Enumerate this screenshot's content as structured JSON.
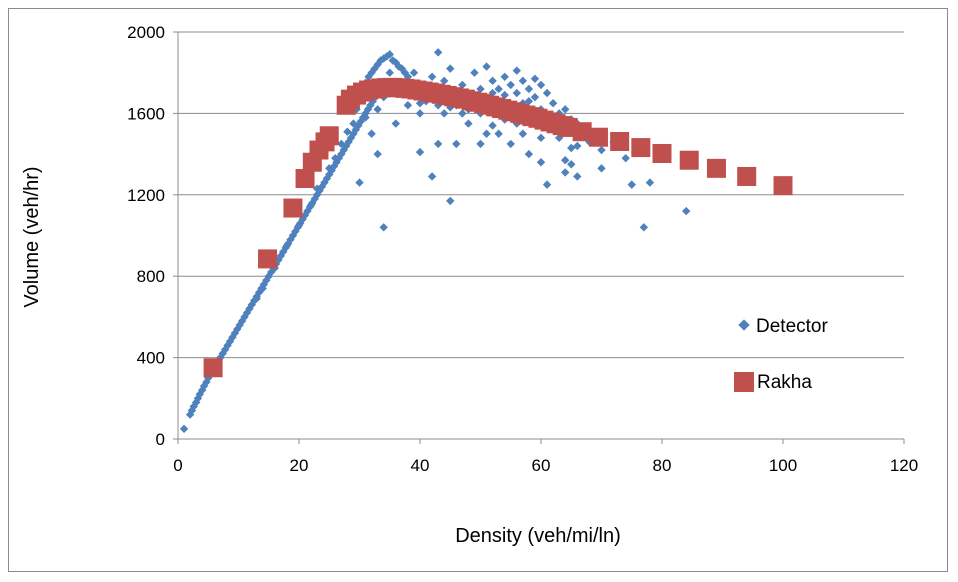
{
  "chart_data": {
    "type": "scatter",
    "xlabel": "Density (veh/mi/ln)",
    "ylabel": "Volume (veh/hr)",
    "xlim": [
      0,
      120
    ],
    "ylim": [
      0,
      2000
    ],
    "x_ticks": [
      "0",
      "20",
      "40",
      "60",
      "80",
      "100",
      "120"
    ],
    "y_ticks": [
      "0",
      "400",
      "800",
      "1200",
      "1600",
      "2000"
    ],
    "grid": "horizontal",
    "legend_position": "right",
    "series": [
      {
        "name": "Detector",
        "marker": "diamond",
        "color": "#4f81bd",
        "points": [
          [
            1,
            50
          ],
          [
            2,
            120
          ],
          [
            2.3,
            140
          ],
          [
            2.6,
            160
          ],
          [
            3,
            180
          ],
          [
            3.3,
            200
          ],
          [
            3.6,
            220
          ],
          [
            4,
            240
          ],
          [
            4.3,
            260
          ],
          [
            4.7,
            280
          ],
          [
            5,
            300
          ],
          [
            5.4,
            320
          ],
          [
            5.8,
            340
          ],
          [
            6.2,
            360
          ],
          [
            6.6,
            380
          ],
          [
            7,
            400
          ],
          [
            7.4,
            420
          ],
          [
            7.8,
            440
          ],
          [
            8.2,
            460
          ],
          [
            8.6,
            480
          ],
          [
            9,
            500
          ],
          [
            9.4,
            520
          ],
          [
            9.8,
            540
          ],
          [
            10.2,
            560
          ],
          [
            10.6,
            580
          ],
          [
            11,
            600
          ],
          [
            11.4,
            620
          ],
          [
            11.8,
            640
          ],
          [
            12.2,
            660
          ],
          [
            12.6,
            680
          ],
          [
            13,
            700
          ],
          [
            13.4,
            720
          ],
          [
            13.8,
            740
          ],
          [
            14.2,
            760
          ],
          [
            14.6,
            780
          ],
          [
            15,
            800
          ],
          [
            15.4,
            820
          ],
          [
            15.8,
            840
          ],
          [
            16.2,
            860
          ],
          [
            16.6,
            880
          ],
          [
            17,
            900
          ],
          [
            17.4,
            920
          ],
          [
            17.8,
            940
          ],
          [
            18.2,
            960
          ],
          [
            18.6,
            980
          ],
          [
            19,
            1000
          ],
          [
            19.4,
            1020
          ],
          [
            19.8,
            1040
          ],
          [
            20.2,
            1060
          ],
          [
            20.6,
            1080
          ],
          [
            21,
            1100
          ],
          [
            21.4,
            1120
          ],
          [
            21.8,
            1140
          ],
          [
            22.2,
            1160
          ],
          [
            22.6,
            1180
          ],
          [
            23,
            1200
          ],
          [
            23.4,
            1220
          ],
          [
            23.8,
            1240
          ],
          [
            24.2,
            1260
          ],
          [
            24.6,
            1280
          ],
          [
            25,
            1300
          ],
          [
            25.4,
            1320
          ],
          [
            25.8,
            1340
          ],
          [
            26.2,
            1360
          ],
          [
            26.6,
            1380
          ],
          [
            27,
            1400
          ],
          [
            27.4,
            1420
          ],
          [
            27.8,
            1440
          ],
          [
            28.2,
            1460
          ],
          [
            28.6,
            1480
          ],
          [
            29,
            1500
          ],
          [
            29.4,
            1520
          ],
          [
            29.8,
            1540
          ],
          [
            30.2,
            1560
          ],
          [
            30.6,
            1580
          ],
          [
            31,
            1600
          ],
          [
            31.4,
            1620
          ],
          [
            31.8,
            1640
          ],
          [
            32.2,
            1660
          ],
          [
            32.6,
            1680
          ],
          [
            33,
            1700
          ],
          [
            13,
            690
          ],
          [
            14,
            740
          ],
          [
            16,
            840
          ],
          [
            18,
            950
          ],
          [
            20,
            1050
          ],
          [
            22,
            1150
          ],
          [
            23,
            1230
          ],
          [
            25,
            1330
          ],
          [
            26,
            1380
          ],
          [
            27,
            1450
          ],
          [
            28,
            1510
          ],
          [
            29,
            1550
          ],
          [
            29.5,
            1620
          ],
          [
            30,
            1680
          ],
          [
            30.5,
            1720
          ],
          [
            31,
            1750
          ],
          [
            31.5,
            1780
          ],
          [
            32,
            1800
          ],
          [
            32.5,
            1820
          ],
          [
            33,
            1840
          ],
          [
            33.5,
            1860
          ],
          [
            34,
            1870
          ],
          [
            34.5,
            1880
          ],
          [
            35,
            1890
          ],
          [
            35.5,
            1860
          ],
          [
            36,
            1850
          ],
          [
            36.5,
            1830
          ],
          [
            37,
            1820
          ],
          [
            37.5,
            1800
          ],
          [
            38,
            1780
          ],
          [
            30,
            1260
          ],
          [
            32,
            1500
          ],
          [
            33,
            1400
          ],
          [
            34,
            1040
          ],
          [
            35,
            1700
          ],
          [
            36,
            1550
          ],
          [
            37,
            1750
          ],
          [
            38,
            1700
          ],
          [
            39,
            1800
          ],
          [
            40,
            1650
          ],
          [
            40,
            1410
          ],
          [
            41,
            1720
          ],
          [
            42,
            1780
          ],
          [
            42,
            1290
          ],
          [
            43,
            1900
          ],
          [
            43,
            1450
          ],
          [
            44,
            1760
          ],
          [
            44,
            1600
          ],
          [
            45,
            1820
          ],
          [
            45,
            1170
          ],
          [
            46,
            1690
          ],
          [
            46,
            1450
          ],
          [
            47,
            1740
          ],
          [
            47,
            1600
          ],
          [
            48,
            1700
          ],
          [
            48,
            1550
          ],
          [
            49,
            1800
          ],
          [
            49,
            1660
          ],
          [
            50,
            1720
          ],
          [
            50,
            1600
          ],
          [
            50,
            1450
          ],
          [
            51,
            1830
          ],
          [
            51,
            1680
          ],
          [
            51,
            1500
          ],
          [
            52,
            1700
          ],
          [
            52,
            1540
          ],
          [
            52,
            1760
          ],
          [
            53,
            1650
          ],
          [
            53,
            1720
          ],
          [
            53,
            1500
          ],
          [
            54,
            1780
          ],
          [
            54,
            1690
          ],
          [
            54,
            1570
          ],
          [
            55,
            1740
          ],
          [
            55,
            1620
          ],
          [
            55,
            1450
          ],
          [
            56,
            1810
          ],
          [
            56,
            1700
          ],
          [
            56,
            1550
          ],
          [
            57,
            1760
          ],
          [
            57,
            1650
          ],
          [
            57,
            1500
          ],
          [
            58,
            1720
          ],
          [
            58,
            1600
          ],
          [
            58,
            1400
          ],
          [
            59,
            1770
          ],
          [
            59,
            1680
          ],
          [
            59,
            1550
          ],
          [
            60,
            1740
          ],
          [
            60,
            1620
          ],
          [
            60,
            1480
          ],
          [
            60,
            1360
          ],
          [
            61,
            1700
          ],
          [
            61,
            1560
          ],
          [
            61,
            1250
          ],
          [
            62,
            1650
          ],
          [
            62,
            1530
          ],
          [
            63,
            1600
          ],
          [
            63,
            1480
          ],
          [
            64,
            1620
          ],
          [
            64,
            1370
          ],
          [
            64,
            1310
          ],
          [
            65,
            1570
          ],
          [
            65,
            1430
          ],
          [
            65,
            1350
          ],
          [
            66,
            1550
          ],
          [
            66,
            1290
          ],
          [
            66,
            1440
          ],
          [
            67,
            1500
          ],
          [
            68,
            1460
          ],
          [
            70,
            1420
          ],
          [
            70,
            1330
          ],
          [
            72,
            1460
          ],
          [
            74,
            1380
          ],
          [
            75,
            1250
          ],
          [
            77,
            1040
          ],
          [
            78,
            1260
          ],
          [
            84,
            1120
          ],
          [
            40,
            1600
          ],
          [
            44,
            1700
          ],
          [
            46,
            1640
          ],
          [
            48,
            1620
          ],
          [
            50,
            1680
          ],
          [
            52,
            1600
          ],
          [
            54,
            1640
          ],
          [
            56,
            1620
          ],
          [
            58,
            1660
          ],
          [
            60,
            1580
          ],
          [
            62,
            1580
          ],
          [
            38,
            1640
          ],
          [
            36,
            1700
          ],
          [
            34,
            1680
          ],
          [
            33,
            1620
          ],
          [
            31,
            1580
          ],
          [
            35,
            1800
          ],
          [
            37,
            1720
          ],
          [
            39,
            1690
          ],
          [
            41,
            1660
          ],
          [
            43,
            1640
          ],
          [
            45,
            1630
          ]
        ]
      },
      {
        "name": "Rakha",
        "marker": "square",
        "color": "#c0504d",
        "points": [
          [
            5.8,
            350
          ],
          [
            14.8,
            885
          ],
          [
            19,
            1135
          ],
          [
            21,
            1280
          ],
          [
            22.2,
            1360
          ],
          [
            23.3,
            1420
          ],
          [
            24.3,
            1460
          ],
          [
            25,
            1490
          ],
          [
            27.8,
            1640
          ],
          [
            28.5,
            1670
          ],
          [
            29.5,
            1690
          ],
          [
            30.5,
            1705
          ],
          [
            31.5,
            1715
          ],
          [
            32.5,
            1720
          ],
          [
            33.5,
            1725
          ],
          [
            34.5,
            1727
          ],
          [
            35.5,
            1728
          ],
          [
            36.5,
            1726
          ],
          [
            37.5,
            1723
          ],
          [
            38.5,
            1720
          ],
          [
            39.5,
            1715
          ],
          [
            40.5,
            1710
          ],
          [
            41.5,
            1705
          ],
          [
            42.5,
            1700
          ],
          [
            43.5,
            1694
          ],
          [
            44.5,
            1688
          ],
          [
            45.5,
            1682
          ],
          [
            46.5,
            1676
          ],
          [
            47.5,
            1670
          ],
          [
            48.5,
            1662
          ],
          [
            49.5,
            1655
          ],
          [
            50.5,
            1648
          ],
          [
            51.5,
            1640
          ],
          [
            52.5,
            1632
          ],
          [
            53.5,
            1624
          ],
          [
            54.5,
            1616
          ],
          [
            55.5,
            1608
          ],
          [
            56.5,
            1600
          ],
          [
            57.5,
            1592
          ],
          [
            58.5,
            1584
          ],
          [
            59.5,
            1576
          ],
          [
            60.5,
            1567
          ],
          [
            61.5,
            1558
          ],
          [
            62.5,
            1549
          ],
          [
            63.5,
            1540
          ],
          [
            64.5,
            1531
          ],
          [
            66.8,
            1510
          ],
          [
            69.5,
            1483
          ],
          [
            73,
            1462
          ],
          [
            76.5,
            1432
          ],
          [
            80,
            1403
          ],
          [
            84.5,
            1370
          ],
          [
            89,
            1330
          ],
          [
            94,
            1290
          ],
          [
            100,
            1245
          ]
        ]
      }
    ]
  }
}
